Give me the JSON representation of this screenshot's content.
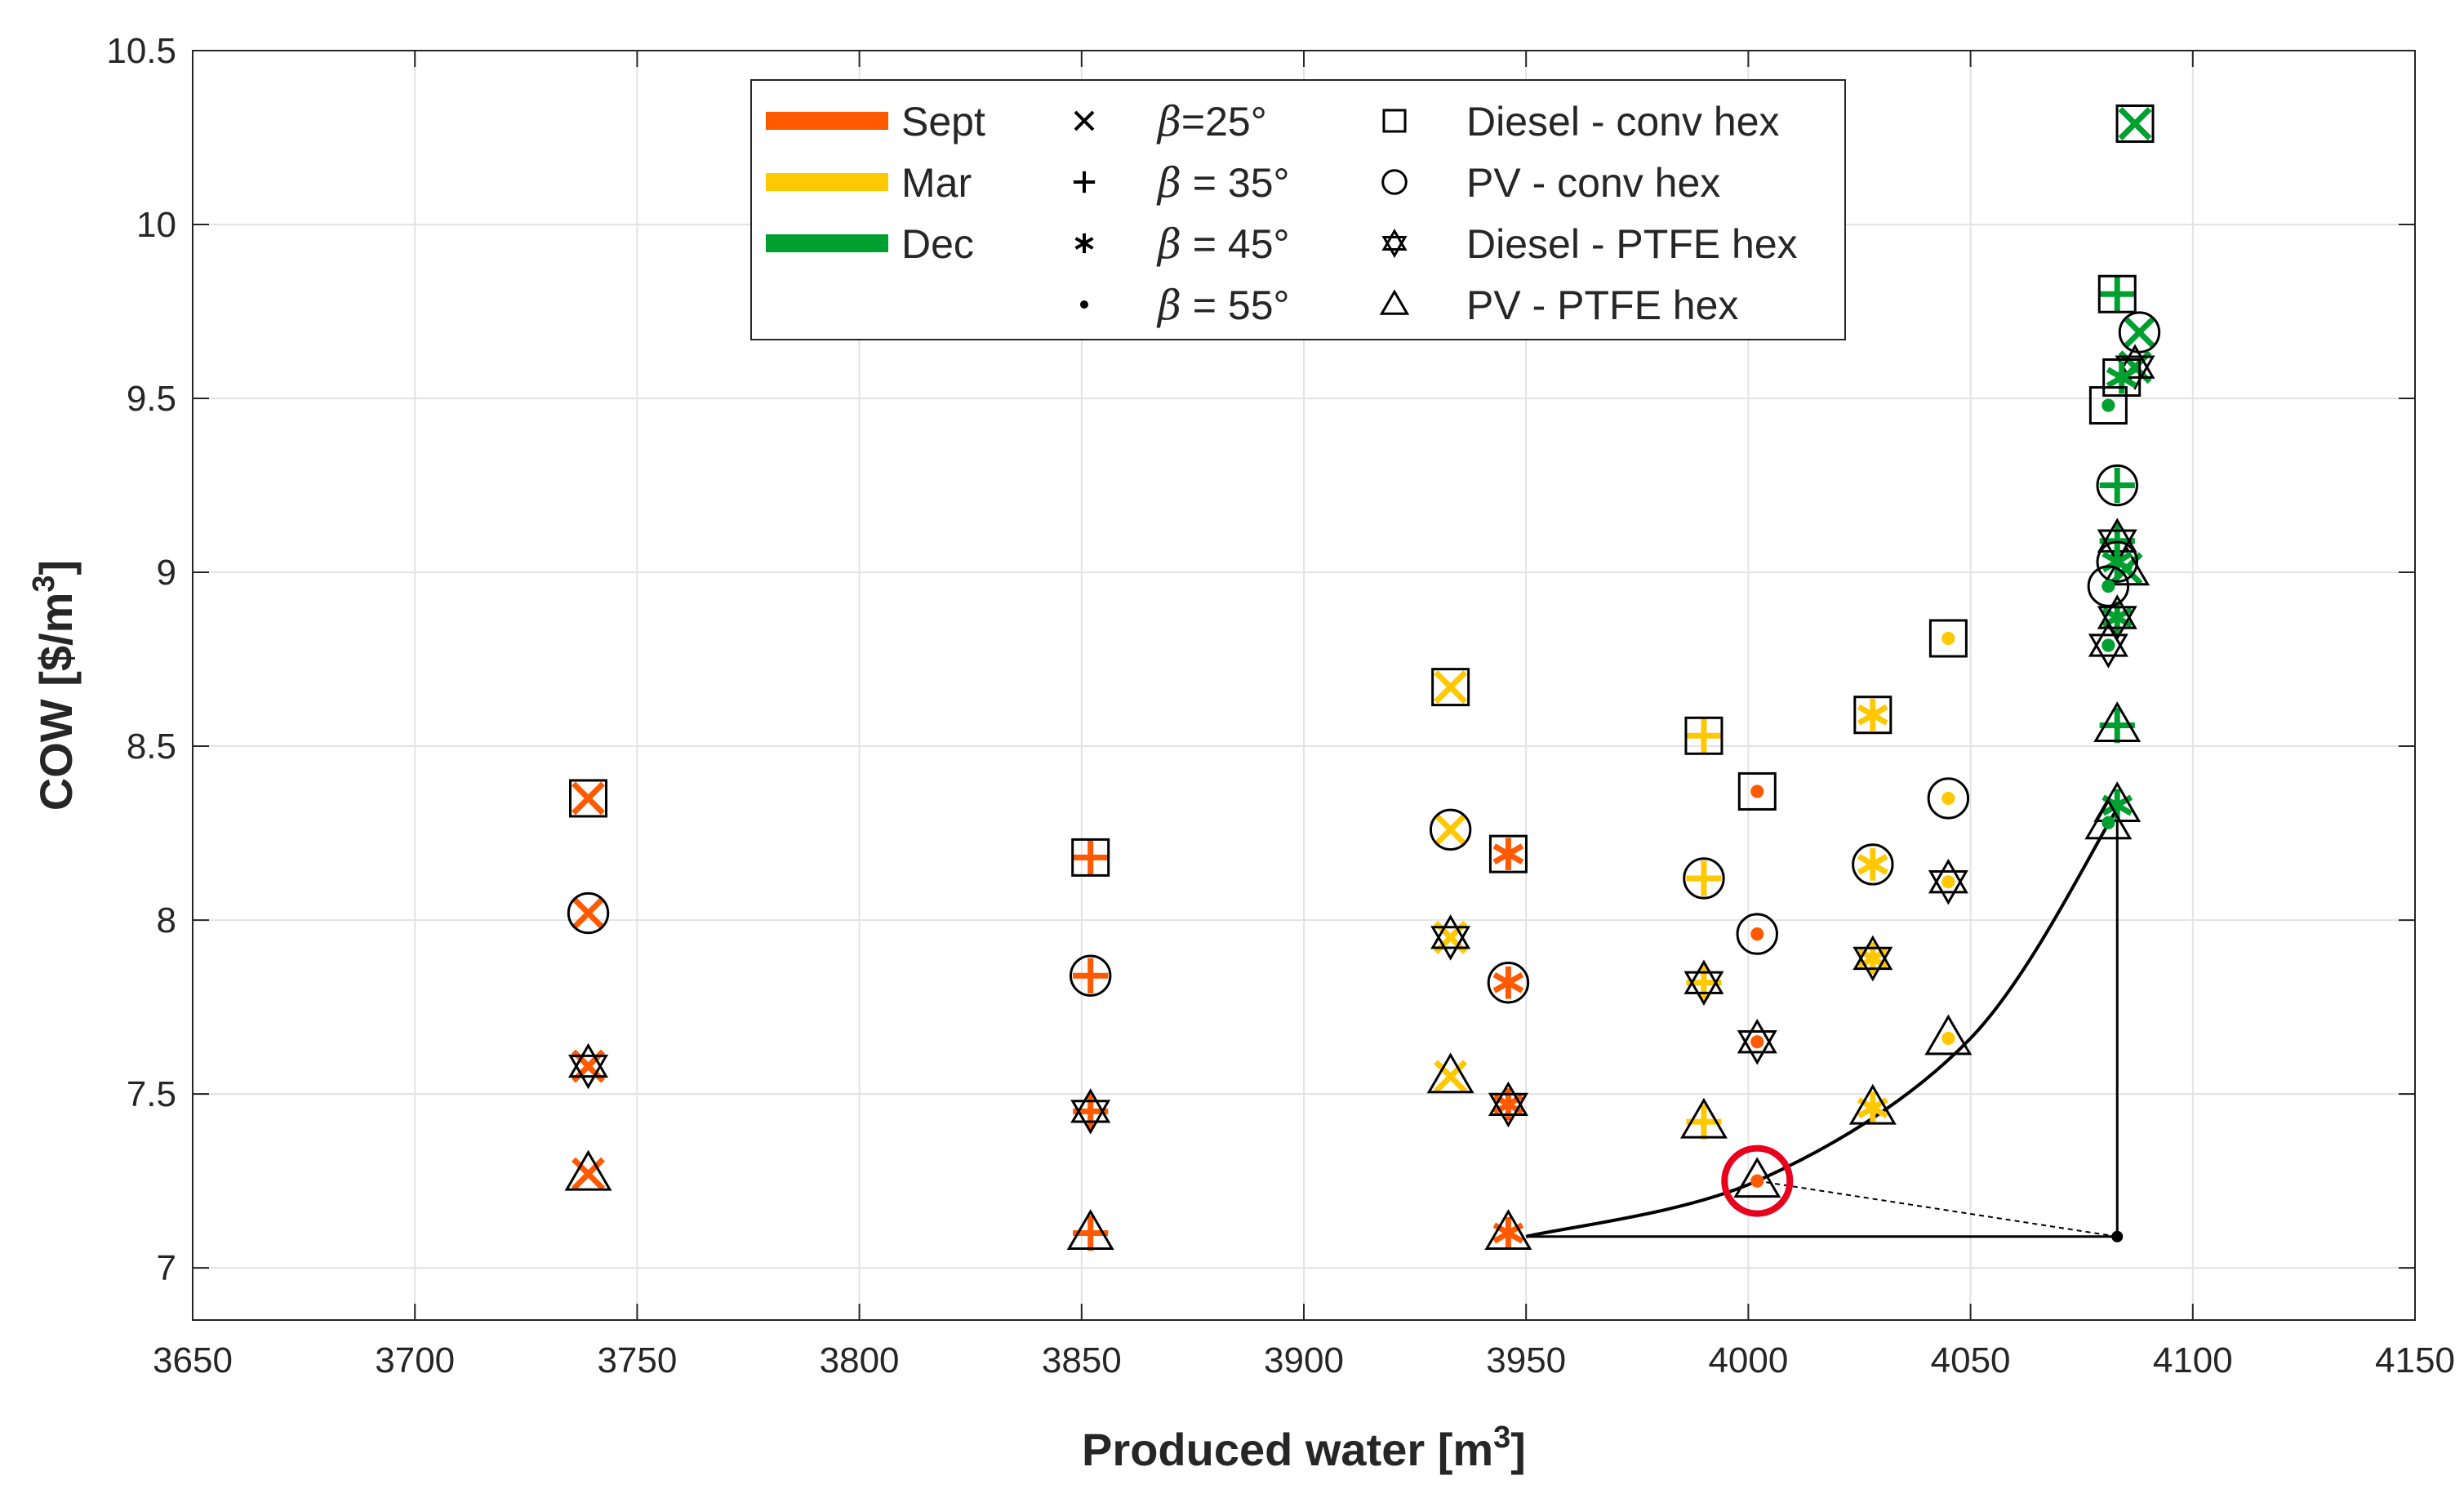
{
  "chart_data": {
    "type": "scatter",
    "xlabel": "Produced water [m",
    "xlabel_sup": "3",
    "xlabel_tail": "]",
    "ylabel": "COW [$/m",
    "ylabel_sup": "3",
    "ylabel_tail": "]",
    "xlim": [
      3650,
      4150
    ],
    "ylim": [
      6.85,
      10.5
    ],
    "xticks": [
      3650,
      3700,
      3750,
      3800,
      3850,
      3900,
      3950,
      4000,
      4050,
      4100,
      4150
    ],
    "yticks": [
      7,
      7.5,
      8,
      8.5,
      9,
      9.5,
      10,
      10.5
    ],
    "xtick_labels": [
      "3650",
      "3700",
      "3750",
      "3800",
      "3850",
      "3900",
      "3950",
      "4000",
      "4050",
      "4100",
      "4150"
    ],
    "ytick_labels": [
      "7",
      "7.5",
      "8",
      "8.5",
      "9",
      "9.5",
      "10",
      "10.5"
    ],
    "grid": true,
    "legend_position": "top-center",
    "colors": {
      "Sept": "#ff5a00",
      "Mar": "#ffc800",
      "Dec": "#00a030"
    },
    "legend": {
      "months": [
        {
          "label": "Sept",
          "color": "#ff5a00"
        },
        {
          "label": "Mar",
          "color": "#ffc800"
        },
        {
          "label": "Dec",
          "color": "#00a030"
        }
      ],
      "betas": [
        {
          "marker": "x",
          "beta": "β",
          "label": "=25°"
        },
        {
          "marker": "plus",
          "beta": "β",
          "label": " = 35°"
        },
        {
          "marker": "asterisk",
          "beta": "β",
          "label": " = 45°"
        },
        {
          "marker": "dot",
          "beta": "β",
          "label": " = 55°"
        }
      ],
      "configs": [
        {
          "shape": "square",
          "label": "Diesel - conv hex"
        },
        {
          "shape": "circle",
          "label": "PV - conv hex"
        },
        {
          "shape": "hexagram",
          "label": "Diesel - PTFE hex"
        },
        {
          "shape": "triangle",
          "label": "PV - PTFE hex"
        }
      ]
    },
    "series": [
      {
        "month": "Sept",
        "points": [
          {
            "x": 3739,
            "y": 8.35,
            "beta": "x",
            "shape": "square"
          },
          {
            "x": 3739,
            "y": 8.02,
            "beta": "x",
            "shape": "circle"
          },
          {
            "x": 3739,
            "y": 7.58,
            "beta": "x",
            "shape": "hexagram"
          },
          {
            "x": 3739,
            "y": 7.27,
            "beta": "x",
            "shape": "triangle"
          },
          {
            "x": 3852,
            "y": 8.18,
            "beta": "plus",
            "shape": "square"
          },
          {
            "x": 3852,
            "y": 7.84,
            "beta": "plus",
            "shape": "circle"
          },
          {
            "x": 3852,
            "y": 7.45,
            "beta": "plus",
            "shape": "hexagram"
          },
          {
            "x": 3852,
            "y": 7.1,
            "beta": "plus",
            "shape": "triangle"
          },
          {
            "x": 3946,
            "y": 8.19,
            "beta": "asterisk",
            "shape": "square"
          },
          {
            "x": 3946,
            "y": 7.82,
            "beta": "asterisk",
            "shape": "circle"
          },
          {
            "x": 3946,
            "y": 7.47,
            "beta": "asterisk",
            "shape": "hexagram"
          },
          {
            "x": 3946,
            "y": 7.1,
            "beta": "asterisk",
            "shape": "triangle"
          },
          {
            "x": 4002,
            "y": 8.37,
            "beta": "dot",
            "shape": "square"
          },
          {
            "x": 4002,
            "y": 7.96,
            "beta": "dot",
            "shape": "circle"
          },
          {
            "x": 4002,
            "y": 7.65,
            "beta": "dot",
            "shape": "hexagram"
          },
          {
            "x": 4002,
            "y": 7.25,
            "beta": "dot",
            "shape": "triangle"
          }
        ]
      },
      {
        "month": "Mar",
        "points": [
          {
            "x": 3933,
            "y": 8.67,
            "beta": "x",
            "shape": "square"
          },
          {
            "x": 3933,
            "y": 8.26,
            "beta": "x",
            "shape": "circle"
          },
          {
            "x": 3933,
            "y": 7.95,
            "beta": "x",
            "shape": "hexagram"
          },
          {
            "x": 3933,
            "y": 7.55,
            "beta": "x",
            "shape": "triangle"
          },
          {
            "x": 3990,
            "y": 8.53,
            "beta": "plus",
            "shape": "square"
          },
          {
            "x": 3990,
            "y": 8.12,
            "beta": "plus",
            "shape": "circle"
          },
          {
            "x": 3990,
            "y": 7.82,
            "beta": "plus",
            "shape": "hexagram"
          },
          {
            "x": 3990,
            "y": 7.42,
            "beta": "plus",
            "shape": "triangle"
          },
          {
            "x": 4028,
            "y": 8.59,
            "beta": "asterisk",
            "shape": "square"
          },
          {
            "x": 4028,
            "y": 8.16,
            "beta": "asterisk",
            "shape": "circle"
          },
          {
            "x": 4028,
            "y": 7.89,
            "beta": "asterisk",
            "shape": "hexagram"
          },
          {
            "x": 4028,
            "y": 7.46,
            "beta": "asterisk",
            "shape": "triangle"
          },
          {
            "x": 4045,
            "y": 8.81,
            "beta": "dot",
            "shape": "square"
          },
          {
            "x": 4045,
            "y": 8.35,
            "beta": "dot",
            "shape": "circle"
          },
          {
            "x": 4045,
            "y": 8.11,
            "beta": "dot",
            "shape": "hexagram"
          },
          {
            "x": 4045,
            "y": 7.66,
            "beta": "dot",
            "shape": "triangle"
          }
        ]
      },
      {
        "month": "Dec",
        "points": [
          {
            "x": 4087,
            "y": 10.29,
            "beta": "x",
            "shape": "square"
          },
          {
            "x": 4088,
            "y": 9.69,
            "beta": "x",
            "shape": "circle"
          },
          {
            "x": 4087,
            "y": 9.59,
            "beta": "x",
            "shape": "hexagram"
          },
          {
            "x": 4085,
            "y": 9.01,
            "beta": "x",
            "shape": "triangle"
          },
          {
            "x": 4083,
            "y": 9.8,
            "beta": "plus",
            "shape": "square"
          },
          {
            "x": 4083,
            "y": 9.25,
            "beta": "plus",
            "shape": "circle"
          },
          {
            "x": 4083,
            "y": 9.09,
            "beta": "plus",
            "shape": "hexagram"
          },
          {
            "x": 4083,
            "y": 8.56,
            "beta": "plus",
            "shape": "triangle"
          },
          {
            "x": 4084,
            "y": 9.56,
            "beta": "asterisk",
            "shape": "square"
          },
          {
            "x": 4083,
            "y": 9.03,
            "beta": "asterisk",
            "shape": "circle"
          },
          {
            "x": 4083,
            "y": 8.87,
            "beta": "asterisk",
            "shape": "hexagram"
          },
          {
            "x": 4083,
            "y": 8.33,
            "beta": "asterisk",
            "shape": "triangle"
          },
          {
            "x": 4081,
            "y": 9.48,
            "beta": "dot",
            "shape": "square"
          },
          {
            "x": 4081,
            "y": 8.96,
            "beta": "dot",
            "shape": "circle"
          },
          {
            "x": 4081,
            "y": 8.79,
            "beta": "dot",
            "shape": "hexagram"
          },
          {
            "x": 4081,
            "y": 8.28,
            "beta": "dot",
            "shape": "triangle"
          }
        ]
      }
    ],
    "annotations": {
      "front_curve": [
        [
          3950,
          7.09
        ],
        [
          4002,
          7.25
        ],
        [
          4050,
          7.66
        ],
        [
          4083,
          8.32
        ]
      ],
      "horizontal_line": [
        [
          3950,
          7.09
        ],
        [
          4083,
          7.09
        ]
      ],
      "vertical_line": [
        [
          4083,
          7.09
        ],
        [
          4083,
          8.32
        ]
      ],
      "dashed_line": [
        [
          4002,
          7.25
        ],
        [
          4083,
          7.09
        ]
      ],
      "utopia_point": [
        4083,
        7.09
      ],
      "highlight_circle": {
        "x": 4002,
        "y": 7.25,
        "color": "#e8001c"
      }
    }
  }
}
